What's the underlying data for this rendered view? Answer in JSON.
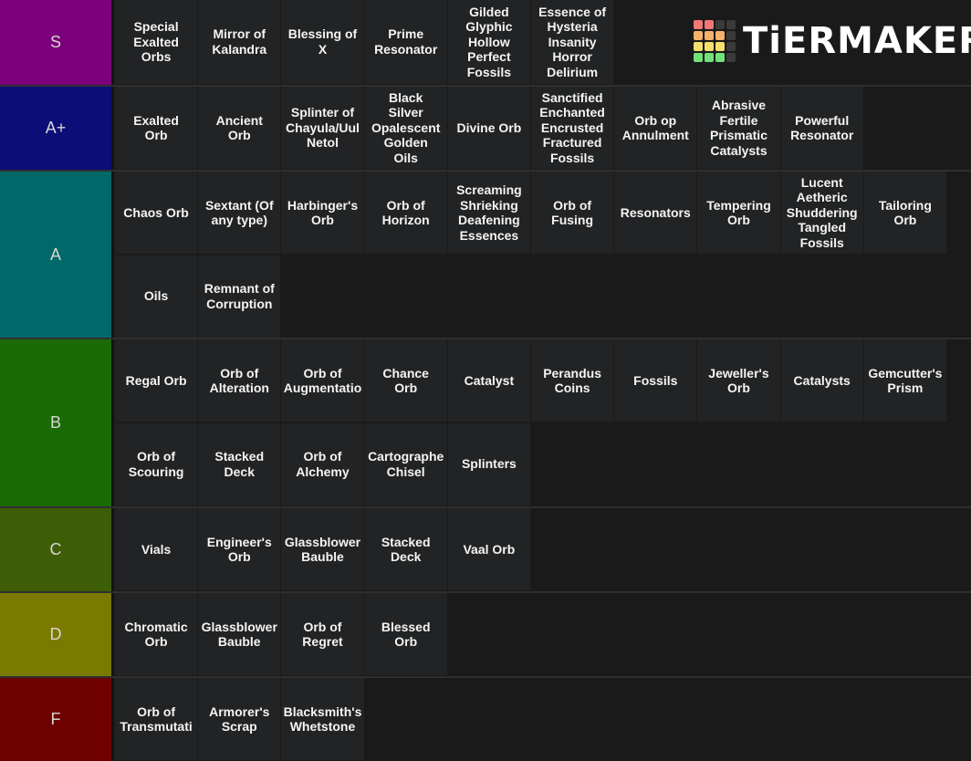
{
  "logo": {
    "text": "TiERMAKER",
    "grid_colors": [
      "#f27777",
      "#f27777",
      "#3a3a3a",
      "#3a3a3a",
      "#f5b26b",
      "#f5b26b",
      "#f5b26b",
      "#3a3a3a",
      "#f5e06b",
      "#f5e06b",
      "#f5e06b",
      "#3a3a3a",
      "#74e07a",
      "#74e07a",
      "#74e07a",
      "#3a3a3a"
    ]
  },
  "tiers": [
    {
      "label": "S",
      "color": "#7c007c",
      "items": [
        "Special\nExalted\nOrbs",
        "Mirror of\nKalandra",
        "Blessing of\nX",
        "Prime\nResonator",
        "Gilded\nGlyphic\nHollow\nPerfect\nFossils",
        "Essence of\nHysteria\nInsanity\nHorror\nDelirium"
      ]
    },
    {
      "label": "A+",
      "color": "#0d0d77",
      "items": [
        "Exalted\nOrb",
        "Ancient\nOrb",
        "Splinter of\nChayula/Uul\nNetol",
        "Black\nSilver\nOpalescent\nGolden\nOils",
        "Divine Orb",
        "Sanctified\nEnchanted\nEncrusted\nFractured\nFossils",
        "Orb op\nAnnulment",
        "Abrasive\nFertile\nPrismatic\nCatalysts",
        "Powerful\nResonator"
      ]
    },
    {
      "label": "A",
      "color": "#006868",
      "items": [
        "Chaos Orb",
        "Sextant (Of\nany type)",
        "Harbinger's\nOrb",
        "Orb of\nHorizon",
        "Screaming\nShrieking\nDeafening\nEssences",
        "Orb of\nFusing",
        "Resonators",
        "Tempering\nOrb",
        "Lucent\nAetheric\nShuddering\nTangled\nFossils",
        "Tailoring\nOrb",
        "Oils",
        "Remnant of\nCorruption"
      ]
    },
    {
      "label": "B",
      "color": "#1a6a06",
      "items": [
        "Regal Orb",
        "Orb of\nAlteration",
        "Orb of\nAugmentatio",
        "Chance\nOrb",
        "Catalyst",
        "Perandus\nCoins",
        "Fossils",
        "Jeweller's\nOrb",
        "Catalysts",
        "Gemcutter's\nPrism",
        "Orb of\nScouring",
        "Stacked\nDeck",
        "Orb of\nAlchemy",
        "Cartographe\nChisel",
        "Splinters"
      ]
    },
    {
      "label": "C",
      "color": "#3d5e06",
      "items": [
        "Vials",
        "Engineer's\nOrb",
        "Glassblower\nBauble",
        "Stacked\nDeck",
        "Vaal Orb"
      ]
    },
    {
      "label": "D",
      "color": "#7a7a00",
      "items": [
        "Chromatic\nOrb",
        "Glassblower\nBauble",
        "Orb of\nRegret",
        "Blessed\nOrb"
      ]
    },
    {
      "label": "F",
      "color": "#6e0000",
      "items": [
        "Orb of\nTransmutati",
        "Armorer's\nScrap",
        "Blacksmith's\nWhetstone"
      ]
    }
  ]
}
